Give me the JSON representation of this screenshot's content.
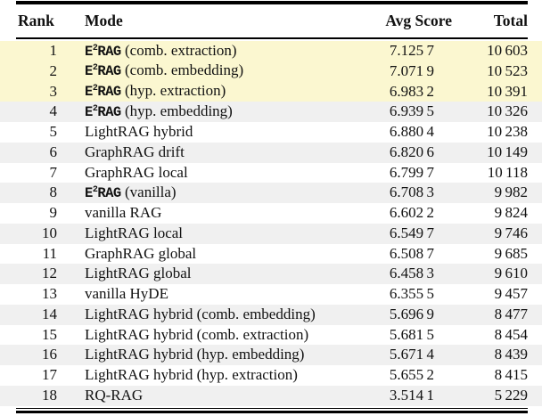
{
  "table": {
    "headers": [
      "Rank",
      "Mode",
      "Avg Score",
      "Total"
    ],
    "highlight_color": "#fbf7d0",
    "stripe_color": "#f0f0f0",
    "rule_color": "#000000",
    "rows": [
      {
        "rank": "1",
        "brand_base": "E",
        "brand_sup": "2",
        "brand_tail": "RAG",
        "mode_rest": "(comb. extraction)",
        "avg": "7.125 7",
        "total": "10 603",
        "bg": "yellow"
      },
      {
        "rank": "2",
        "brand_base": "E",
        "brand_sup": "2",
        "brand_tail": "RAG",
        "mode_rest": "(comb. embedding)",
        "avg": "7.071 9",
        "total": "10 523",
        "bg": "yellow"
      },
      {
        "rank": "3",
        "brand_base": "E",
        "brand_sup": "2",
        "brand_tail": "RAG",
        "mode_rest": "(hyp. extraction)",
        "avg": "6.983 2",
        "total": "10 391",
        "bg": "yellow"
      },
      {
        "rank": "4",
        "brand_base": "E",
        "brand_sup": "2",
        "brand_tail": "RAG",
        "mode_rest": "(hyp. embedding)",
        "avg": "6.939 5",
        "total": "10 326",
        "bg": "gray"
      },
      {
        "rank": "5",
        "brand_base": "",
        "brand_sup": "",
        "brand_tail": "",
        "mode_rest": "LightRAG hybrid",
        "avg": "6.880 4",
        "total": "10 238",
        "bg": "white"
      },
      {
        "rank": "6",
        "brand_base": "",
        "brand_sup": "",
        "brand_tail": "",
        "mode_rest": "GraphRAG drift",
        "avg": "6.820 6",
        "total": "10 149",
        "bg": "gray"
      },
      {
        "rank": "7",
        "brand_base": "",
        "brand_sup": "",
        "brand_tail": "",
        "mode_rest": "GraphRAG local",
        "avg": "6.799 7",
        "total": "10 118",
        "bg": "white"
      },
      {
        "rank": "8",
        "brand_base": "E",
        "brand_sup": "2",
        "brand_tail": "RAG",
        "mode_rest": "(vanilla)",
        "avg": "6.708 3",
        "total": "9 982",
        "bg": "gray"
      },
      {
        "rank": "9",
        "brand_base": "",
        "brand_sup": "",
        "brand_tail": "",
        "mode_rest": "vanilla RAG",
        "avg": "6.602 2",
        "total": "9 824",
        "bg": "white"
      },
      {
        "rank": "10",
        "brand_base": "",
        "brand_sup": "",
        "brand_tail": "",
        "mode_rest": "LightRAG local",
        "avg": "6.549 7",
        "total": "9 746",
        "bg": "gray"
      },
      {
        "rank": "11",
        "brand_base": "",
        "brand_sup": "",
        "brand_tail": "",
        "mode_rest": "GraphRAG global",
        "avg": "6.508 7",
        "total": "9 685",
        "bg": "white"
      },
      {
        "rank": "12",
        "brand_base": "",
        "brand_sup": "",
        "brand_tail": "",
        "mode_rest": "LightRAG global",
        "avg": "6.458 3",
        "total": "9 610",
        "bg": "gray"
      },
      {
        "rank": "13",
        "brand_base": "",
        "brand_sup": "",
        "brand_tail": "",
        "mode_rest": "vanilla HyDE",
        "avg": "6.355 5",
        "total": "9 457",
        "bg": "white"
      },
      {
        "rank": "14",
        "brand_base": "",
        "brand_sup": "",
        "brand_tail": "",
        "mode_rest": "LightRAG hybrid (comb. embedding)",
        "avg": "5.696 9",
        "total": "8 477",
        "bg": "gray"
      },
      {
        "rank": "15",
        "brand_base": "",
        "brand_sup": "",
        "brand_tail": "",
        "mode_rest": "LightRAG hybrid (comb. extraction)",
        "avg": "5.681 5",
        "total": "8 454",
        "bg": "white"
      },
      {
        "rank": "16",
        "brand_base": "",
        "brand_sup": "",
        "brand_tail": "",
        "mode_rest": "LightRAG hybrid (hyp. embedding)",
        "avg": "5.671 4",
        "total": "8 439",
        "bg": "gray"
      },
      {
        "rank": "17",
        "brand_base": "",
        "brand_sup": "",
        "brand_tail": "",
        "mode_rest": "LightRAG hybrid (hyp. extraction)",
        "avg": "5.655 2",
        "total": "8 415",
        "bg": "white"
      },
      {
        "rank": "18",
        "brand_base": "",
        "brand_sup": "",
        "brand_tail": "",
        "mode_rest": "RQ-RAG",
        "avg": "3.514 1",
        "total": "5 229",
        "bg": "gray"
      }
    ]
  }
}
